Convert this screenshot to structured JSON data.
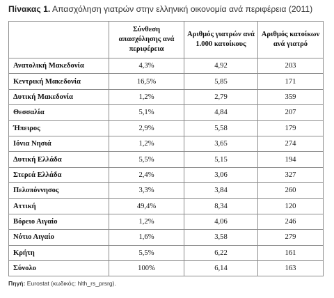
{
  "caption": {
    "label": "Πίνακας 1.",
    "text": " Απασχόληση γιατρών στην ελληνική οικονομία ανά περιφέρεια (2011)"
  },
  "table": {
    "headers": [
      "",
      "Σύνθεση απασχόλησης ανά περιφέρεια",
      "Αριθμός γιατρών ανά 1.000 κατοίκους",
      "Αριθμός κατοίκων ανά γιατρό"
    ],
    "rows": [
      [
        "Ανατολική Μακεδονία",
        "4,3%",
        "4,92",
        "203"
      ],
      [
        "Κεντρική Μακεδονία",
        "16,5%",
        "5,85",
        "171"
      ],
      [
        "Δυτική Μακεδονία",
        "1,2%",
        "2,79",
        "359"
      ],
      [
        "Θεσσαλία",
        "5,1%",
        "4,84",
        "207"
      ],
      [
        "Ήπειρος",
        "2,9%",
        "5,58",
        "179"
      ],
      [
        "Ιόνια Νησιά",
        "1,2%",
        "3,65",
        "274"
      ],
      [
        "Δυτική Ελλάδα",
        "5,5%",
        "5,15",
        "194"
      ],
      [
        "Στερεά Ελλάδα",
        "2,4%",
        "3,06",
        "327"
      ],
      [
        "Πελοπόννησος",
        "3,3%",
        "3,84",
        "260"
      ],
      [
        "Αττική",
        "49,4%",
        "8,34",
        "120"
      ],
      [
        "Βόρειο Αιγαίο",
        "1,2%",
        "4,06",
        "246"
      ],
      [
        "Νότιο Αιγαίο",
        "1,6%",
        "3,58",
        "279"
      ],
      [
        "Κρήτη",
        "5,5%",
        "6,22",
        "161"
      ],
      [
        "Σύνολο",
        "100%",
        "6,14",
        "163"
      ]
    ]
  },
  "source": {
    "label": "Πηγή:",
    "text": " Eurostat (κωδικός: hlth_rs_prsrg)."
  }
}
